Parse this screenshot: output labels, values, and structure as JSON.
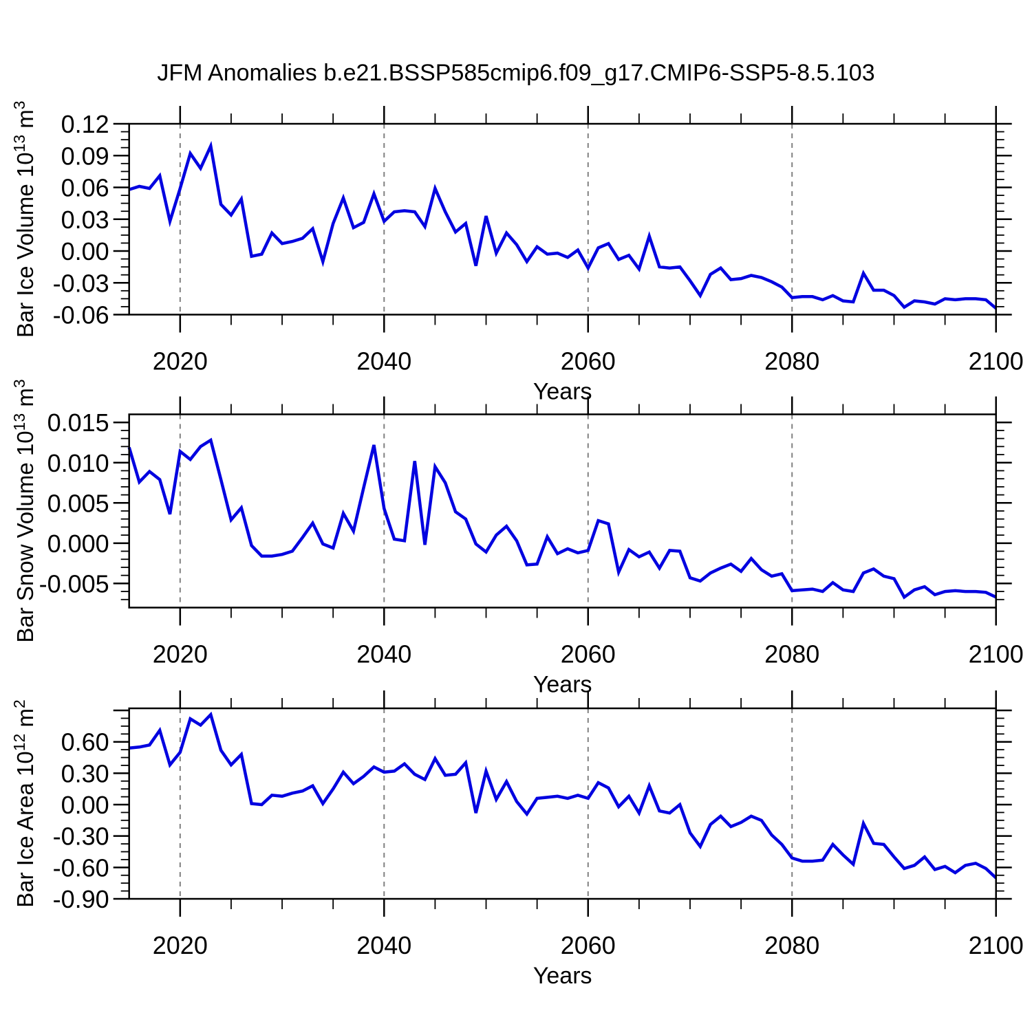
{
  "title": "JFM Anomalies b.e21.BSSP585cmip6.f09_g17.CMIP6-SSP5-8.5.103",
  "colors": {
    "line": "#0202e0",
    "axis": "#000000",
    "gridline": "#808080",
    "background": "#ffffff"
  },
  "x_axis": {
    "label": "Years",
    "start": 2015,
    "end": 2100,
    "major_ticks": [
      2020,
      2040,
      2060,
      2080,
      2100
    ],
    "tick_labels": [
      "2020",
      "2040",
      "2060",
      "2080",
      "2100"
    ],
    "minor_step": 5,
    "gridline_years": [
      2020,
      2040,
      2060,
      2080
    ]
  },
  "chart_data": [
    {
      "type": "line",
      "name": "bar-ice-volume",
      "ylabel": "Bar Ice Volume 10^13 m^3",
      "ylabel_parts": [
        [
          "Bar Ice Volume 10",
          false
        ],
        [
          "13",
          true
        ],
        [
          " m",
          false
        ],
        [
          "3",
          true
        ]
      ],
      "ylim": [
        -0.06,
        0.12
      ],
      "y_major_step": 0.03,
      "y_minor_step": 0.0075,
      "ytick_values": [
        0.12,
        0.09,
        0.06,
        0.03,
        0,
        -0.03,
        -0.06
      ],
      "ytick_labels": [
        "0.12",
        "0.09",
        "0.06",
        "0.03",
        "0.00",
        "-0.03",
        "-0.06"
      ],
      "x_start": 2015,
      "x_step": 1,
      "values": [
        0.058,
        0.061,
        0.059,
        0.071,
        0.028,
        0.059,
        0.092,
        0.078,
        0.099,
        0.044,
        0.034,
        0.049,
        -0.005,
        -0.003,
        0.017,
        0.007,
        0.009,
        0.012,
        0.021,
        -0.01,
        0.026,
        0.05,
        0.022,
        0.027,
        0.054,
        0.028,
        0.037,
        0.038,
        0.037,
        0.023,
        0.059,
        0.037,
        0.018,
        0.026,
        -0.014,
        0.033,
        -0.002,
        0.017,
        0.006,
        -0.01,
        0.004,
        -0.003,
        -0.002,
        -0.006,
        0.001,
        -0.016,
        0.003,
        0.007,
        -0.008,
        -0.004,
        -0.017,
        0.014,
        -0.015,
        -0.016,
        -0.015,
        -0.028,
        -0.042,
        -0.022,
        -0.016,
        -0.027,
        -0.026,
        -0.023,
        -0.025,
        -0.029,
        -0.034,
        -0.044,
        -0.043,
        -0.043,
        -0.046,
        -0.042,
        -0.047,
        -0.048,
        -0.021,
        -0.037,
        -0.037,
        -0.042,
        -0.053,
        -0.047,
        -0.048,
        -0.05,
        -0.045,
        -0.046,
        -0.045,
        -0.045,
        -0.046,
        -0.054
      ]
    },
    {
      "type": "line",
      "name": "bar-snow-volume",
      "ylabel": "Bar Snow Volume 10^13 m^3",
      "ylabel_parts": [
        [
          "Bar Snow Volume 10",
          false
        ],
        [
          "13",
          true
        ],
        [
          " m",
          false
        ],
        [
          "3",
          true
        ]
      ],
      "ylim": [
        -0.008,
        0.016
      ],
      "y_major_step": 0.005,
      "y_minor_step": 0.001,
      "ytick_values": [
        0.015,
        0.01,
        0.005,
        0,
        -0.005
      ],
      "ytick_labels": [
        "0.015",
        "0.010",
        "0.005",
        "0.000",
        "-0.005"
      ],
      "x_start": 2015,
      "x_step": 1,
      "values": [
        0.0119,
        0.0076,
        0.0089,
        0.0079,
        0.0036,
        0.0114,
        0.0104,
        0.012,
        0.0128,
        0.0079,
        0.0029,
        0.0044,
        -0.0003,
        -0.0016,
        -0.0016,
        -0.0014,
        -0.001,
        0.0007,
        0.0025,
        -0.0001,
        -0.0006,
        0.0037,
        0.0015,
        0.0069,
        0.0122,
        0.0043,
        0.0005,
        0.0003,
        0.0102,
        -0.0002,
        0.0095,
        0.0075,
        0.0039,
        0.003,
        -0.0001,
        -0.0011,
        0.001,
        0.0021,
        0.0003,
        -0.0027,
        -0.0026,
        0.0008,
        -0.0013,
        -0.0007,
        -0.0012,
        -0.0009,
        0.0028,
        0.0024,
        -0.0036,
        -0.0008,
        -0.0017,
        -0.0011,
        -0.0031,
        -0.0009,
        -0.001,
        -0.0043,
        -0.0047,
        -0.0037,
        -0.0031,
        -0.0026,
        -0.0035,
        -0.0019,
        -0.0033,
        -0.0041,
        -0.0038,
        -0.0059,
        -0.0058,
        -0.0057,
        -0.006,
        -0.0049,
        -0.0058,
        -0.006,
        -0.0037,
        -0.0032,
        -0.0041,
        -0.0044,
        -0.0067,
        -0.0058,
        -0.0054,
        -0.0064,
        -0.006,
        -0.0059,
        -0.006,
        -0.006,
        -0.0061,
        -0.0067
      ]
    },
    {
      "type": "line",
      "name": "bar-ice-area",
      "ylabel": "Bar Ice Area 10^12 m^2",
      "ylabel_parts": [
        [
          "Bar Ice Area 10",
          false
        ],
        [
          "12",
          true
        ],
        [
          " m",
          false
        ],
        [
          "2",
          true
        ]
      ],
      "ylim": [
        -0.9,
        0.92
      ],
      "y_major_step": 0.3,
      "y_minor_step": 0.075,
      "ytick_values": [
        0.6,
        0.3,
        0,
        -0.3,
        -0.6,
        -0.9
      ],
      "ytick_labels": [
        "0.60",
        "0.30",
        "0.00",
        "-0.30",
        "-0.60",
        "-0.90"
      ],
      "x_start": 2015,
      "x_step": 1,
      "values": [
        0.54,
        0.55,
        0.57,
        0.71,
        0.38,
        0.5,
        0.82,
        0.76,
        0.86,
        0.52,
        0.38,
        0.48,
        0.01,
        0.0,
        0.09,
        0.08,
        0.11,
        0.13,
        0.18,
        0.01,
        0.15,
        0.31,
        0.2,
        0.27,
        0.36,
        0.31,
        0.32,
        0.39,
        0.29,
        0.24,
        0.44,
        0.28,
        0.29,
        0.4,
        -0.08,
        0.32,
        0.05,
        0.22,
        0.03,
        -0.09,
        0.06,
        0.07,
        0.08,
        0.06,
        0.09,
        0.06,
        0.21,
        0.16,
        -0.02,
        0.08,
        -0.08,
        0.18,
        -0.06,
        -0.08,
        0.0,
        -0.27,
        -0.4,
        -0.19,
        -0.11,
        -0.21,
        -0.17,
        -0.11,
        -0.15,
        -0.29,
        -0.38,
        -0.51,
        -0.54,
        -0.54,
        -0.53,
        -0.38,
        -0.48,
        -0.57,
        -0.18,
        -0.37,
        -0.38,
        -0.5,
        -0.61,
        -0.58,
        -0.5,
        -0.62,
        -0.59,
        -0.65,
        -0.58,
        -0.56,
        -0.61,
        -0.7
      ]
    }
  ]
}
